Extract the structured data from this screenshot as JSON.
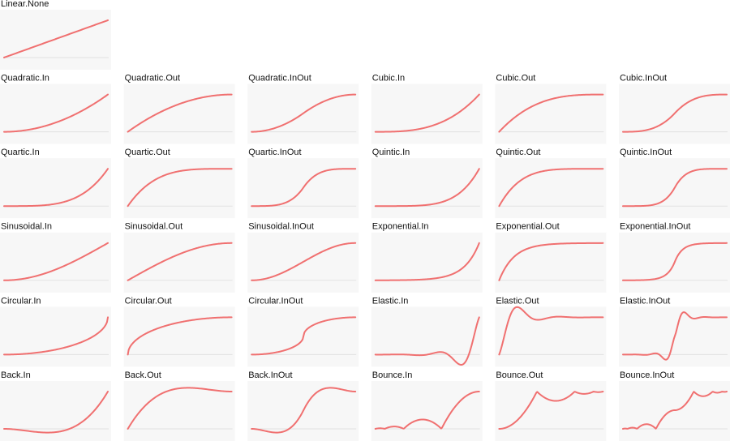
{
  "panels": [
    "Linear.None",
    "Quadratic.In",
    "Quadratic.Out",
    "Quadratic.InOut",
    "Cubic.In",
    "Cubic.Out",
    "Cubic.InOut",
    "Quartic.In",
    "Quartic.Out",
    "Quartic.InOut",
    "Quintic.In",
    "Quintic.Out",
    "Quintic.InOut",
    "Sinusoidal.In",
    "Sinusoidal.Out",
    "Sinusoidal.InOut",
    "Exponential.In",
    "Exponential.Out",
    "Exponential.InOut",
    "Circular.In",
    "Circular.Out",
    "Circular.InOut",
    "Elastic.In",
    "Elastic.Out",
    "Elastic.InOut",
    "Back.In",
    "Back.Out",
    "Back.InOut",
    "Bounce.In",
    "Bounce.Out",
    "Bounce.InOut"
  ]
}
